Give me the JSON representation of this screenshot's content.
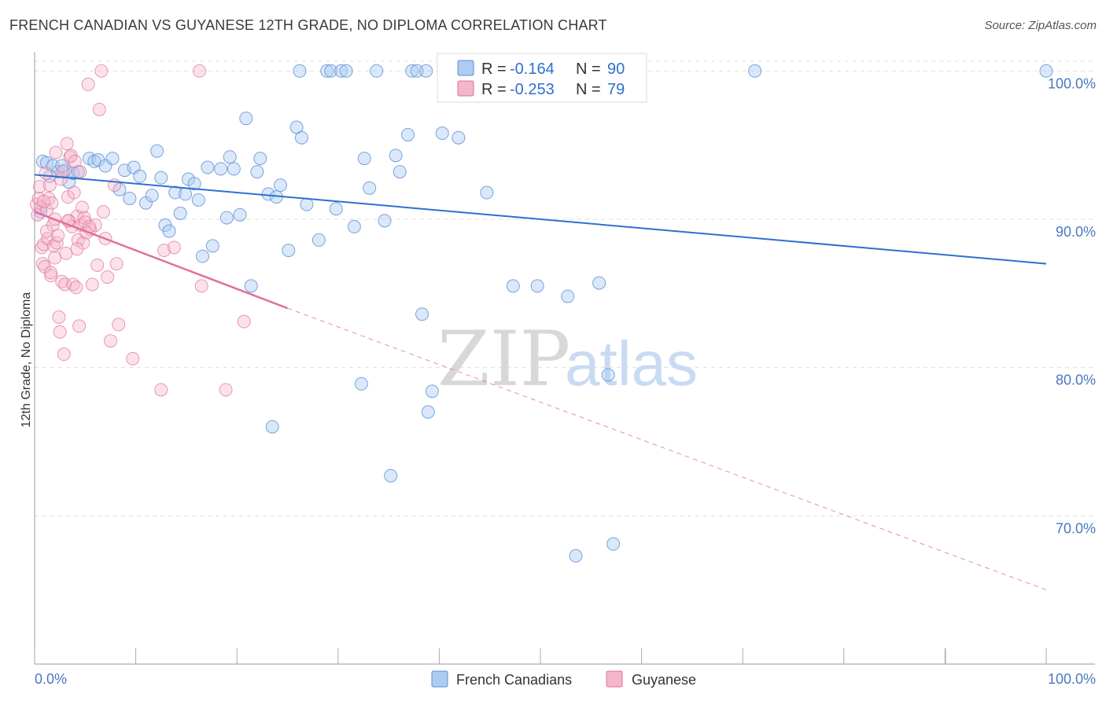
{
  "title": "FRENCH CANADIAN VS GUYANESE 12TH GRADE, NO DIPLOMA CORRELATION CHART",
  "source": "Source: ZipAtlas.com",
  "watermark": {
    "zip": "ZIP",
    "atlas": "atlas"
  },
  "colors": {
    "blue": "#5b8fd6",
    "blue_fill": "#aecbf2",
    "blue_line": "#2f6fd0",
    "pink": "#e0709a",
    "pink_fill": "#f4b6cb",
    "pink_line": "#e0709a",
    "grid": "#dddddd",
    "tick_text": "#4a78c0"
  },
  "legend": {
    "rows": [
      {
        "r_label": "R =",
        "r_value": "-0.164",
        "n_label": "N =",
        "n_value": "90"
      },
      {
        "r_label": "R =",
        "r_value": "-0.253",
        "n_label": "N =",
        "n_value": "79"
      }
    ]
  },
  "bottom_legend": {
    "items": [
      {
        "label": "French Canadians"
      },
      {
        "label": "Guyanese"
      }
    ]
  },
  "chart_data": {
    "type": "scatter",
    "title": "FRENCH CANADIAN VS GUYANESE 12TH GRADE, NO DIPLOMA CORRELATION CHART",
    "xlabel": "",
    "ylabel": "12th Grade, No Diploma",
    "xlim": [
      0,
      100
    ],
    "ylim": [
      60,
      101.5
    ],
    "x_tick_labels": [
      "0.0%",
      "100.0%"
    ],
    "y_ticks": [
      70,
      80,
      90,
      100
    ],
    "y_tick_labels": [
      "70.0%",
      "80.0%",
      "90.0%",
      "100.0%"
    ],
    "grid": true,
    "legend_position": "top-center",
    "series": [
      {
        "name": "French Canadians",
        "r": -0.164,
        "n": 90,
        "trend": {
          "x": [
            0,
            100
          ],
          "y": [
            93.0,
            87.0
          ],
          "style": "solid"
        },
        "points": [
          [
            0.8,
            93.9
          ],
          [
            1.2,
            93.8
          ],
          [
            1.8,
            93.6
          ],
          [
            2.3,
            93.2
          ],
          [
            3.0,
            93.3
          ],
          [
            3.4,
            92.5
          ],
          [
            3.8,
            93.1
          ],
          [
            5.4,
            94.1
          ],
          [
            5.9,
            93.9
          ],
          [
            6.3,
            94.0
          ],
          [
            7.0,
            93.6
          ],
          [
            7.7,
            94.1
          ],
          [
            8.4,
            92.0
          ],
          [
            8.9,
            93.3
          ],
          [
            9.4,
            91.4
          ],
          [
            9.8,
            93.5
          ],
          [
            10.4,
            92.9
          ],
          [
            11.0,
            91.1
          ],
          [
            11.6,
            91.6
          ],
          [
            12.1,
            94.6
          ],
          [
            12.5,
            92.8
          ],
          [
            12.9,
            89.6
          ],
          [
            13.3,
            89.2
          ],
          [
            13.9,
            91.8
          ],
          [
            14.4,
            90.4
          ],
          [
            14.9,
            91.7
          ],
          [
            15.2,
            92.7
          ],
          [
            15.8,
            92.4
          ],
          [
            16.2,
            91.3
          ],
          [
            16.6,
            87.5
          ],
          [
            17.1,
            93.5
          ],
          [
            17.6,
            88.2
          ],
          [
            18.4,
            93.4
          ],
          [
            19.0,
            90.1
          ],
          [
            19.3,
            94.2
          ],
          [
            19.7,
            93.4
          ],
          [
            20.3,
            90.3
          ],
          [
            20.9,
            96.8
          ],
          [
            21.4,
            85.5
          ],
          [
            22.0,
            93.2
          ],
          [
            22.3,
            94.1
          ],
          [
            23.1,
            91.7
          ],
          [
            23.5,
            76.0
          ],
          [
            23.9,
            91.5
          ],
          [
            24.3,
            92.3
          ],
          [
            25.1,
            87.9
          ],
          [
            25.9,
            96.2
          ],
          [
            26.4,
            95.5
          ],
          [
            26.2,
            100.0
          ],
          [
            26.9,
            91.0
          ],
          [
            28.1,
            88.6
          ],
          [
            28.9,
            100.0
          ],
          [
            29.3,
            100.0
          ],
          [
            29.8,
            90.7
          ],
          [
            30.3,
            100.0
          ],
          [
            30.8,
            100.0
          ],
          [
            31.6,
            89.5
          ],
          [
            32.6,
            94.1
          ],
          [
            32.3,
            78.9
          ],
          [
            33.1,
            92.1
          ],
          [
            33.8,
            100.0
          ],
          [
            34.6,
            89.9
          ],
          [
            35.2,
            72.7
          ],
          [
            35.7,
            94.3
          ],
          [
            36.1,
            93.2
          ],
          [
            36.9,
            95.7
          ],
          [
            37.3,
            100.0
          ],
          [
            37.8,
            100.0
          ],
          [
            38.3,
            83.6
          ],
          [
            38.7,
            100.0
          ],
          [
            38.9,
            77.0
          ],
          [
            39.3,
            78.4
          ],
          [
            40.3,
            95.8
          ],
          [
            41.9,
            95.5
          ],
          [
            44.7,
            91.8
          ],
          [
            47.3,
            85.5
          ],
          [
            48.0,
            100.0
          ],
          [
            49.7,
            85.5
          ],
          [
            50.2,
            100.0
          ],
          [
            52.7,
            84.8
          ],
          [
            53.5,
            67.3
          ],
          [
            55.8,
            85.7
          ],
          [
            56.7,
            79.5
          ],
          [
            57.2,
            68.1
          ],
          [
            71.2,
            100.0
          ],
          [
            100.0,
            100.0
          ],
          [
            0.6,
            90.5
          ],
          [
            1.5,
            92.9
          ],
          [
            4.3,
            93.2
          ],
          [
            2.7,
            93.6
          ]
        ]
      },
      {
        "name": "Guyanese",
        "r": -0.253,
        "n": 79,
        "trend": {
          "x": [
            0,
            25
          ],
          "y": [
            90.5,
            84.0
          ],
          "style": "solid",
          "extension": {
            "x": [
              25,
              100
            ],
            "y": [
              84.0,
              65.0
            ],
            "style": "dashed"
          }
        },
        "points": [
          [
            0.2,
            91.0
          ],
          [
            0.3,
            90.3
          ],
          [
            0.4,
            91.4
          ],
          [
            0.5,
            92.2
          ],
          [
            0.6,
            90.8
          ],
          [
            0.7,
            88.1
          ],
          [
            0.8,
            87.0
          ],
          [
            0.9,
            88.3
          ],
          [
            1.0,
            86.8
          ],
          [
            1.1,
            93.1
          ],
          [
            1.2,
            90.6
          ],
          [
            1.3,
            88.7
          ],
          [
            1.4,
            91.4
          ],
          [
            1.5,
            92.3
          ],
          [
            1.6,
            86.2
          ],
          [
            1.7,
            91.1
          ],
          [
            1.8,
            89.6
          ],
          [
            1.9,
            88.2
          ],
          [
            2.0,
            87.4
          ],
          [
            2.1,
            94.5
          ],
          [
            2.2,
            88.4
          ],
          [
            2.3,
            88.9
          ],
          [
            2.4,
            83.4
          ],
          [
            2.5,
            82.4
          ],
          [
            2.6,
            92.7
          ],
          [
            2.7,
            85.8
          ],
          [
            2.8,
            93.2
          ],
          [
            2.9,
            80.9
          ],
          [
            3.0,
            85.6
          ],
          [
            3.1,
            87.7
          ],
          [
            3.2,
            95.1
          ],
          [
            3.3,
            91.5
          ],
          [
            3.4,
            89.9
          ],
          [
            3.5,
            94.2
          ],
          [
            3.6,
            94.3
          ],
          [
            3.7,
            89.5
          ],
          [
            3.8,
            85.6
          ],
          [
            3.9,
            91.8
          ],
          [
            4.0,
            93.9
          ],
          [
            4.1,
            85.4
          ],
          [
            4.2,
            90.2
          ],
          [
            4.3,
            88.6
          ],
          [
            4.4,
            82.8
          ],
          [
            4.5,
            93.2
          ],
          [
            4.6,
            89.6
          ],
          [
            4.7,
            90.8
          ],
          [
            4.8,
            88.4
          ],
          [
            4.9,
            90.1
          ],
          [
            5.0,
            89.8
          ],
          [
            5.3,
            99.1
          ],
          [
            5.5,
            89.3
          ],
          [
            5.7,
            85.6
          ],
          [
            6.0,
            89.6
          ],
          [
            6.2,
            86.9
          ],
          [
            6.4,
            97.4
          ],
          [
            6.6,
            100.0
          ],
          [
            6.8,
            90.5
          ],
          [
            7.0,
            88.7
          ],
          [
            7.2,
            86.1
          ],
          [
            7.5,
            81.8
          ],
          [
            7.9,
            92.3
          ],
          [
            8.1,
            87.0
          ],
          [
            8.3,
            82.9
          ],
          [
            9.7,
            80.6
          ],
          [
            12.5,
            78.5
          ],
          [
            12.8,
            87.9
          ],
          [
            13.8,
            88.1
          ],
          [
            16.3,
            100.0
          ],
          [
            16.5,
            85.5
          ],
          [
            18.9,
            78.5
          ],
          [
            20.7,
            83.1
          ],
          [
            5.1,
            89.1
          ],
          [
            5.4,
            89.5
          ],
          [
            4.2,
            88.0
          ],
          [
            3.3,
            89.9
          ],
          [
            2.0,
            90.0
          ],
          [
            1.6,
            86.4
          ],
          [
            0.9,
            91.2
          ],
          [
            1.2,
            89.2
          ]
        ]
      }
    ]
  }
}
